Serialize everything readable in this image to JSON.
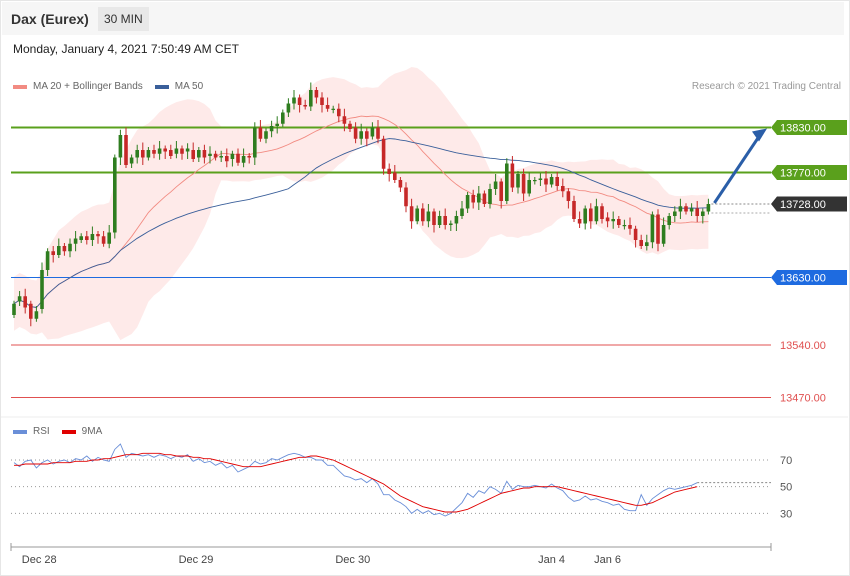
{
  "header": {
    "instrument": "Dax (Eurex)",
    "timeframe": "30 MIN"
  },
  "datetime": "Monday, January 4, 2021 7:50:49 AM CET",
  "legend": {
    "bollinger": {
      "label": "MA 20 + Bollinger Bands",
      "color": "#f28b82"
    },
    "ma50": {
      "label": "MA 50",
      "color": "#3a5f9a"
    }
  },
  "credit": "Research © 2021 Trading Central",
  "rsi_legend": {
    "rsi": {
      "label": "RSI",
      "color": "#6a8fd8"
    },
    "ma9": {
      "label": "9MA",
      "color": "#e00000"
    }
  },
  "chart_data": {
    "type": "candlestick",
    "y_range": [
      13420,
      13920
    ],
    "levels": [
      {
        "value": "13830.00",
        "v": 13830,
        "style": "resistance",
        "color": "#5aa01c"
      },
      {
        "value": "13770.00",
        "v": 13770,
        "style": "resistance",
        "color": "#5aa01c"
      },
      {
        "value": "13728.00",
        "v": 13728,
        "style": "current",
        "color": "#333333"
      },
      {
        "value": "13630.00",
        "v": 13630,
        "style": "pivot",
        "color": "#1e6be0"
      },
      {
        "value": "13540.00",
        "v": 13540,
        "style": "support",
        "color": "#e05050"
      },
      {
        "value": "13470.00",
        "v": 13470,
        "style": "support",
        "color": "#e05050"
      }
    ],
    "candles": [
      [
        13580,
        13595
      ],
      [
        13598,
        13605
      ],
      [
        13605,
        13590
      ],
      [
        13595,
        13575
      ],
      [
        13575,
        13585
      ],
      [
        13588,
        13640
      ],
      [
        13640,
        13665
      ],
      [
        13665,
        13660
      ],
      [
        13660,
        13672
      ],
      [
        13672,
        13665
      ],
      [
        13665,
        13675
      ],
      [
        13675,
        13682
      ],
      [
        13680,
        13685
      ],
      [
        13685,
        13680
      ],
      [
        13680,
        13688
      ],
      [
        13688,
        13685
      ],
      [
        13685,
        13675
      ],
      [
        13675,
        13690
      ],
      [
        13690,
        13790
      ],
      [
        13790,
        13820
      ],
      [
        13820,
        13780
      ],
      [
        13782,
        13790
      ],
      [
        13790,
        13800
      ],
      [
        13800,
        13790
      ],
      [
        13790,
        13800
      ],
      [
        13800,
        13795
      ],
      [
        13795,
        13802
      ],
      [
        13802,
        13798
      ],
      [
        13800,
        13792
      ],
      [
        13795,
        13802
      ],
      [
        13802,
        13795
      ],
      [
        13798,
        13802
      ],
      [
        13800,
        13788
      ],
      [
        13790,
        13800
      ],
      [
        13800,
        13790
      ],
      [
        13792,
        13795
      ],
      [
        13795,
        13790
      ],
      [
        13790,
        13792
      ],
      [
        13792,
        13785
      ],
      [
        13788,
        13795
      ],
      [
        13795,
        13783
      ],
      [
        13783,
        13792
      ],
      [
        13792,
        13790
      ],
      [
        13790,
        13830
      ],
      [
        13830,
        13815
      ],
      [
        13815,
        13825
      ],
      [
        13825,
        13832
      ],
      [
        13832,
        13835
      ],
      [
        13835,
        13850
      ],
      [
        13850,
        13862
      ],
      [
        13862,
        13870
      ],
      [
        13870,
        13860
      ],
      [
        13860,
        13858
      ],
      [
        13858,
        13880
      ],
      [
        13880,
        13870
      ],
      [
        13870,
        13860
      ],
      [
        13860,
        13855
      ],
      [
        13855,
        13855
      ],
      [
        13855,
        13845
      ],
      [
        13845,
        13835
      ],
      [
        13835,
        13828
      ],
      [
        13830,
        13815
      ],
      [
        13815,
        13825
      ],
      [
        13825,
        13815
      ],
      [
        13818,
        13830
      ],
      [
        13830,
        13815
      ],
      [
        13815,
        13775
      ],
      [
        13775,
        13768
      ],
      [
        13770,
        13760
      ],
      [
        13760,
        13750
      ],
      [
        13750,
        13725
      ],
      [
        13725,
        13705
      ],
      [
        13705,
        13722
      ],
      [
        13722,
        13705
      ],
      [
        13705,
        13718
      ],
      [
        13718,
        13700
      ],
      [
        13700,
        13712
      ],
      [
        13712,
        13700
      ],
      [
        13700,
        13702
      ],
      [
        13702,
        13712
      ],
      [
        13712,
        13722
      ],
      [
        13722,
        13740
      ],
      [
        13740,
        13730
      ],
      [
        13730,
        13742
      ],
      [
        13742,
        13728
      ],
      [
        13728,
        13748
      ],
      [
        13748,
        13758
      ],
      [
        13758,
        13732
      ],
      [
        13732,
        13782
      ],
      [
        13782,
        13750
      ],
      [
        13750,
        13768
      ],
      [
        13768,
        13742
      ],
      [
        13742,
        13760
      ],
      [
        13760,
        13760
      ],
      [
        13760,
        13762
      ],
      [
        13762,
        13754
      ],
      [
        13754,
        13764
      ],
      [
        13764,
        13752
      ],
      [
        13752,
        13745
      ],
      [
        13745,
        13732
      ],
      [
        13732,
        13708
      ],
      [
        13708,
        13702
      ],
      [
        13702,
        13722
      ],
      [
        13722,
        13705
      ],
      [
        13705,
        13725
      ],
      [
        13725,
        13708
      ],
      [
        13710,
        13705
      ],
      [
        13705,
        13708
      ],
      [
        13708,
        13700
      ],
      [
        13700,
        13700
      ],
      [
        13700,
        13695
      ],
      [
        13695,
        13680
      ],
      [
        13680,
        13672
      ],
      [
        13672,
        13677
      ],
      [
        13677,
        13714
      ],
      [
        13714,
        13675
      ],
      [
        13675,
        13700
      ],
      [
        13700,
        13712
      ],
      [
        13712,
        13718
      ],
      [
        13718,
        13725
      ],
      [
        13725,
        13718
      ],
      [
        13718,
        13722
      ],
      [
        13722,
        13712
      ],
      [
        13712,
        13718
      ],
      [
        13718,
        13728
      ]
    ],
    "xlabels": [
      {
        "text": "Dec 28",
        "i": 4.5
      },
      {
        "text": "Dec 29",
        "i": 32.5
      },
      {
        "text": "Dec 30",
        "i": 60.5
      },
      {
        "text": "Jan 4",
        "i": 96
      },
      {
        "text": "Jan 6",
        "i": 106
      }
    ],
    "rsi": {
      "range": [
        10,
        85
      ],
      "levels": [
        70,
        50,
        30
      ],
      "rsi_values": [
        68,
        65,
        69,
        70,
        64,
        68,
        70,
        67,
        69,
        70,
        68,
        71,
        70,
        73,
        69,
        72,
        70,
        69,
        78,
        82,
        72,
        75,
        74,
        73,
        74,
        72,
        74,
        73,
        71,
        73,
        72,
        74,
        69,
        71,
        68,
        69,
        66,
        68,
        64,
        66,
        61,
        63,
        65,
        69,
        67,
        68,
        71,
        70,
        72,
        74,
        75,
        74,
        72,
        72,
        70,
        70,
        66,
        66,
        62,
        58,
        57,
        55,
        56,
        53,
        56,
        52,
        44,
        44,
        40,
        38,
        35,
        30,
        33,
        30,
        32,
        29,
        30,
        28,
        30,
        34,
        38,
        45,
        42,
        47,
        45,
        50,
        48,
        45,
        54,
        48,
        51,
        50,
        50,
        51,
        50,
        49,
        52,
        49,
        47,
        42,
        39,
        40,
        43,
        40,
        41,
        39,
        38,
        36,
        37,
        33,
        32,
        32,
        44,
        36,
        41,
        44,
        47,
        49,
        48,
        49,
        50,
        51,
        53
      ],
      "ma9_values": [
        66,
        66,
        67,
        67,
        67,
        67,
        67,
        68,
        68,
        68,
        68,
        69,
        69,
        69,
        70,
        70,
        71,
        71,
        72,
        73,
        74,
        74,
        74,
        75,
        75,
        75,
        75,
        74,
        74,
        73,
        73,
        73,
        72,
        72,
        71,
        71,
        70,
        69,
        68,
        67,
        66,
        65,
        65,
        65,
        65,
        66,
        67,
        68,
        69,
        70,
        71,
        72,
        72,
        73,
        73,
        72,
        71,
        70,
        68,
        66,
        64,
        62,
        60,
        58,
        56,
        54,
        52,
        49,
        46,
        43,
        41,
        39,
        37,
        35,
        34,
        33,
        32,
        31,
        31,
        31,
        32,
        33,
        35,
        37,
        39,
        41,
        43,
        45,
        46,
        47,
        48,
        49,
        49,
        50,
        50,
        50,
        50,
        50,
        49,
        48,
        47,
        46,
        45,
        44,
        43,
        42,
        41,
        40,
        39,
        38,
        37,
        36,
        36,
        37,
        38,
        40,
        42,
        44,
        46,
        47,
        48,
        49,
        50
      ]
    }
  }
}
